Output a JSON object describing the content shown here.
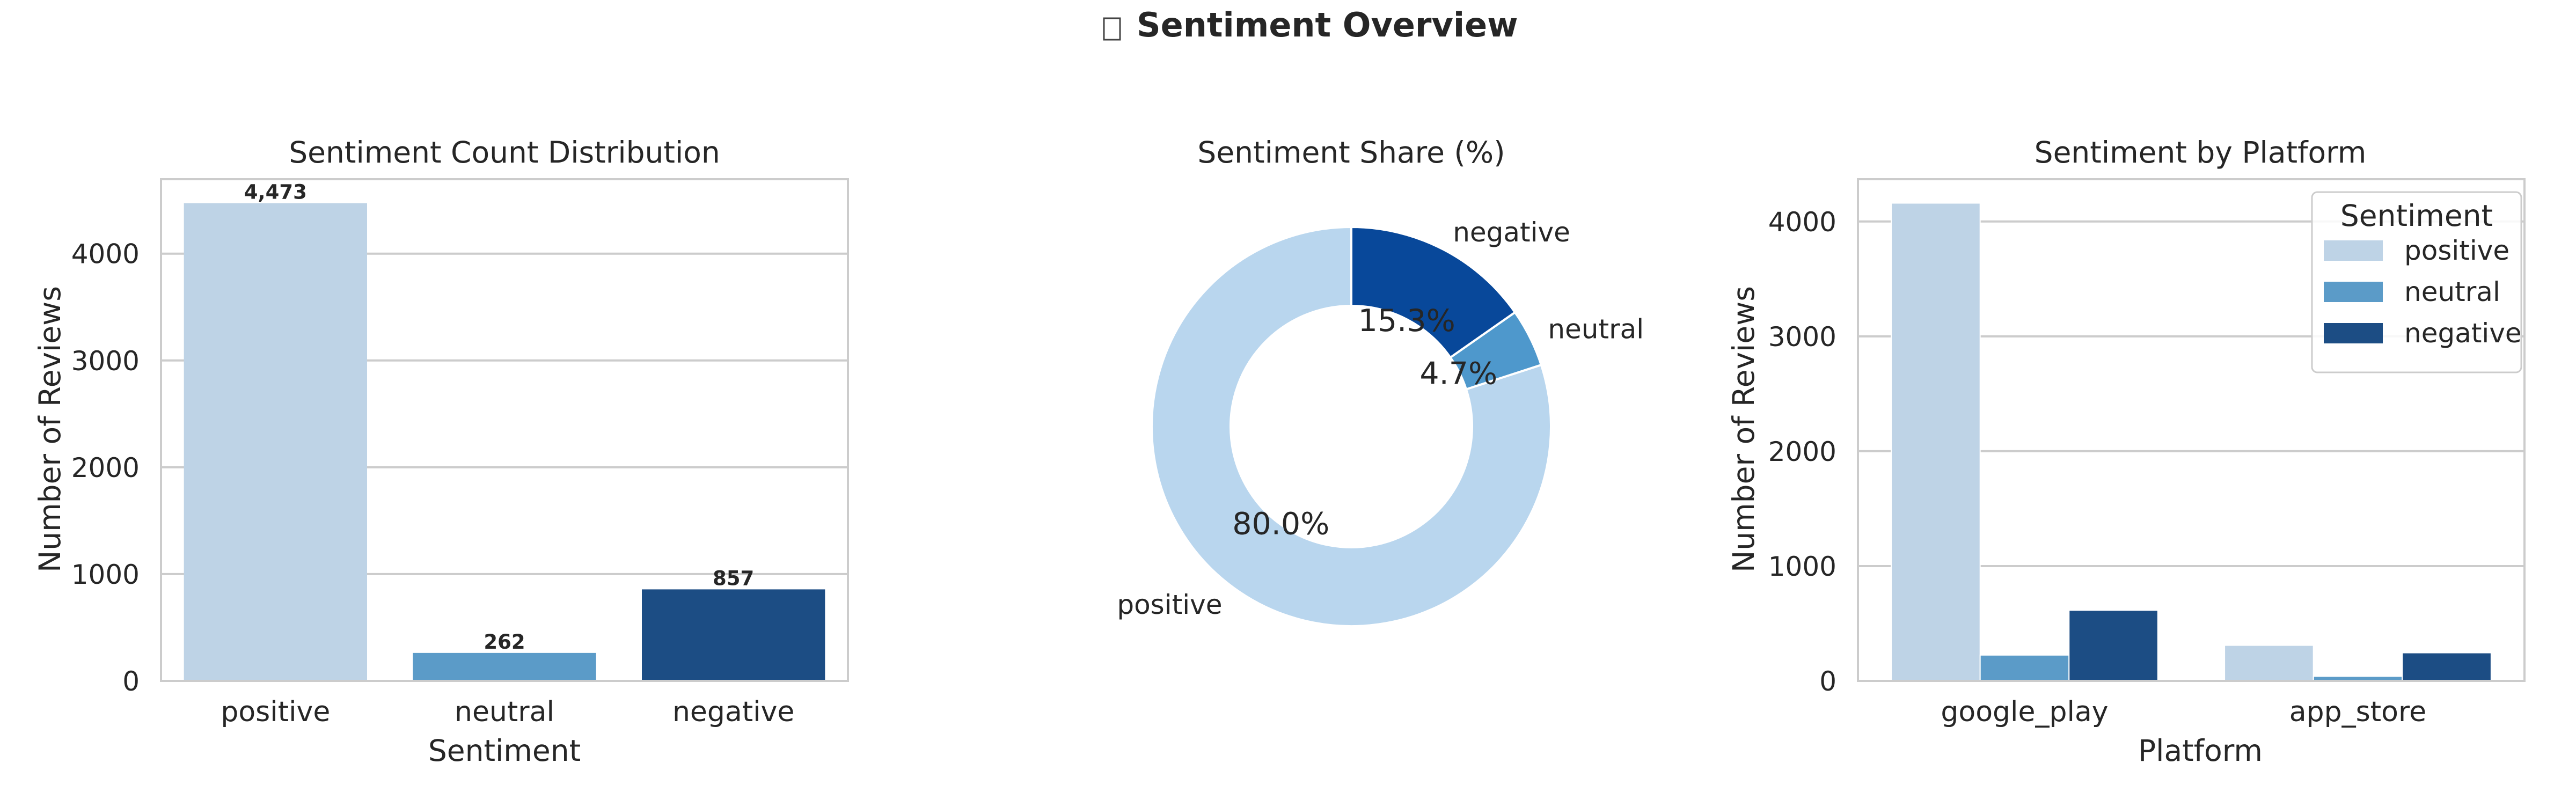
{
  "figure": {
    "title_icon": "chart-icon",
    "title": "Sentiment Overview"
  },
  "chart_data": [
    {
      "type": "bar",
      "title": "Sentiment Count Distribution",
      "xlabel": "Sentiment",
      "ylabel": "Number of Reviews",
      "categories": [
        "positive",
        "neutral",
        "negative"
      ],
      "values": [
        4473,
        262,
        857
      ],
      "value_labels": [
        "4,473",
        "262",
        "857"
      ],
      "colors": [
        "#bed3e6",
        "#5b9bc8",
        "#1c4d84"
      ],
      "ylim": [
        0,
        4697
      ],
      "yticks": [
        0,
        1000,
        2000,
        3000,
        4000
      ],
      "grid": true
    },
    {
      "type": "pie",
      "title": "Sentiment Share (%)",
      "labels": [
        "positive",
        "neutral",
        "negative"
      ],
      "values": [
        80.0,
        4.7,
        15.3
      ],
      "pct_labels": [
        "80.0%",
        "4.7%",
        "15.3%"
      ],
      "colors": [
        "#b9d6ee",
        "#4e98cc",
        "#08489a"
      ],
      "donut": true,
      "start_angle": 90
    },
    {
      "type": "bar",
      "title": "Sentiment by Platform",
      "xlabel": "Platform",
      "ylabel": "Number of Reviews",
      "categories": [
        "google_play",
        "app_store"
      ],
      "series": [
        {
          "name": "positive",
          "values": [
            4160,
            310
          ],
          "color": "#bed3e6"
        },
        {
          "name": "neutral",
          "values": [
            225,
            40
          ],
          "color": "#5b9bc8"
        },
        {
          "name": "negative",
          "values": [
            615,
            245
          ],
          "color": "#1c4d84"
        }
      ],
      "ylim": [
        0,
        4368
      ],
      "yticks": [
        0,
        1000,
        2000,
        3000,
        4000
      ],
      "legend": {
        "title": "Sentiment",
        "placement": "top-right"
      },
      "grid": true
    }
  ]
}
